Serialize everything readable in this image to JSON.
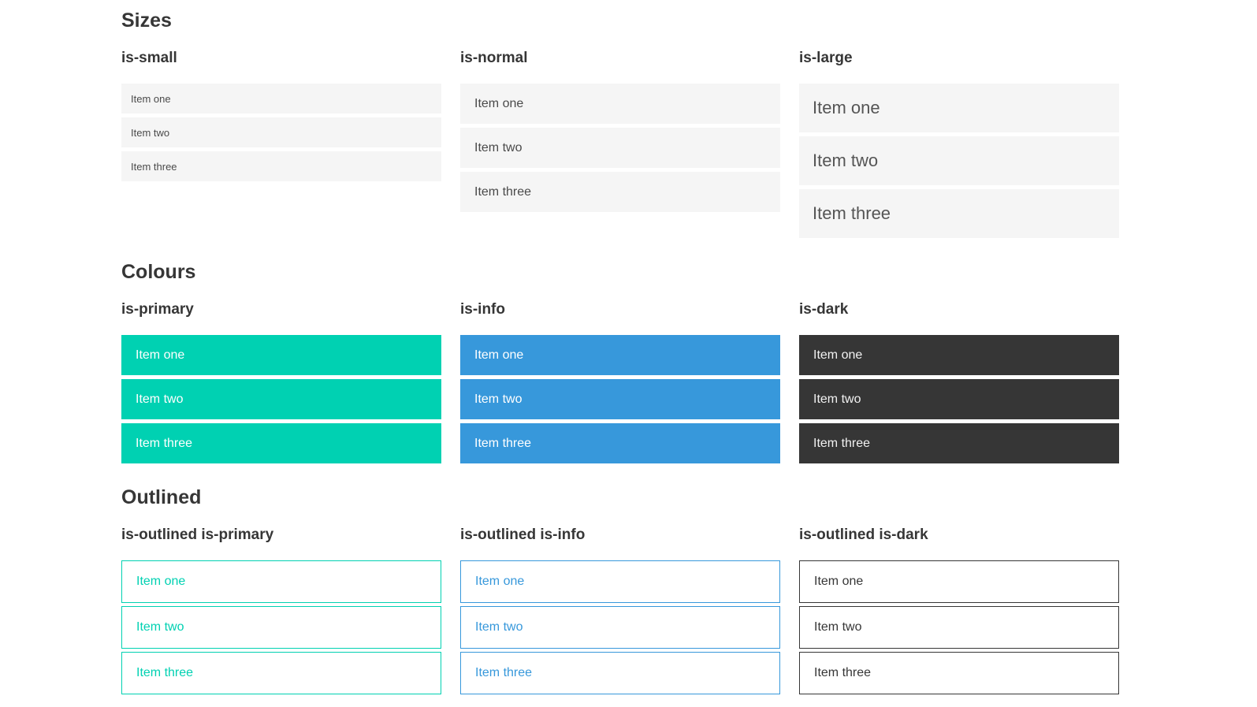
{
  "colors": {
    "primary": "#00d1b2",
    "info": "#3798db",
    "dark": "#363636",
    "light_item_bg": "#f5f5f5",
    "heading_text": "#363636",
    "item_text": "#4a4a4a"
  },
  "sections": [
    {
      "title": "Sizes",
      "groups": [
        {
          "label": "is-small",
          "items": [
            "Item one",
            "Item two",
            "Item three"
          ]
        },
        {
          "label": "is-normal",
          "items": [
            "Item one",
            "Item two",
            "Item three"
          ]
        },
        {
          "label": "is-large",
          "items": [
            "Item one",
            "Item two",
            "Item three"
          ]
        }
      ]
    },
    {
      "title": "Colours",
      "groups": [
        {
          "label": "is-primary",
          "items": [
            "Item one",
            "Item two",
            "Item three"
          ]
        },
        {
          "label": "is-info",
          "items": [
            "Item one",
            "Item two",
            "Item three"
          ]
        },
        {
          "label": "is-dark",
          "items": [
            "Item one",
            "Item two",
            "Item three"
          ]
        }
      ]
    },
    {
      "title": "Outlined",
      "groups": [
        {
          "label": "is-outlined is-primary",
          "items": [
            "Item one",
            "Item two",
            "Item three"
          ]
        },
        {
          "label": "is-outlined is-info",
          "items": [
            "Item one",
            "Item two",
            "Item three"
          ]
        },
        {
          "label": "is-outlined is-dark",
          "items": [
            "Item one",
            "Item two",
            "Item three"
          ]
        }
      ]
    }
  ]
}
